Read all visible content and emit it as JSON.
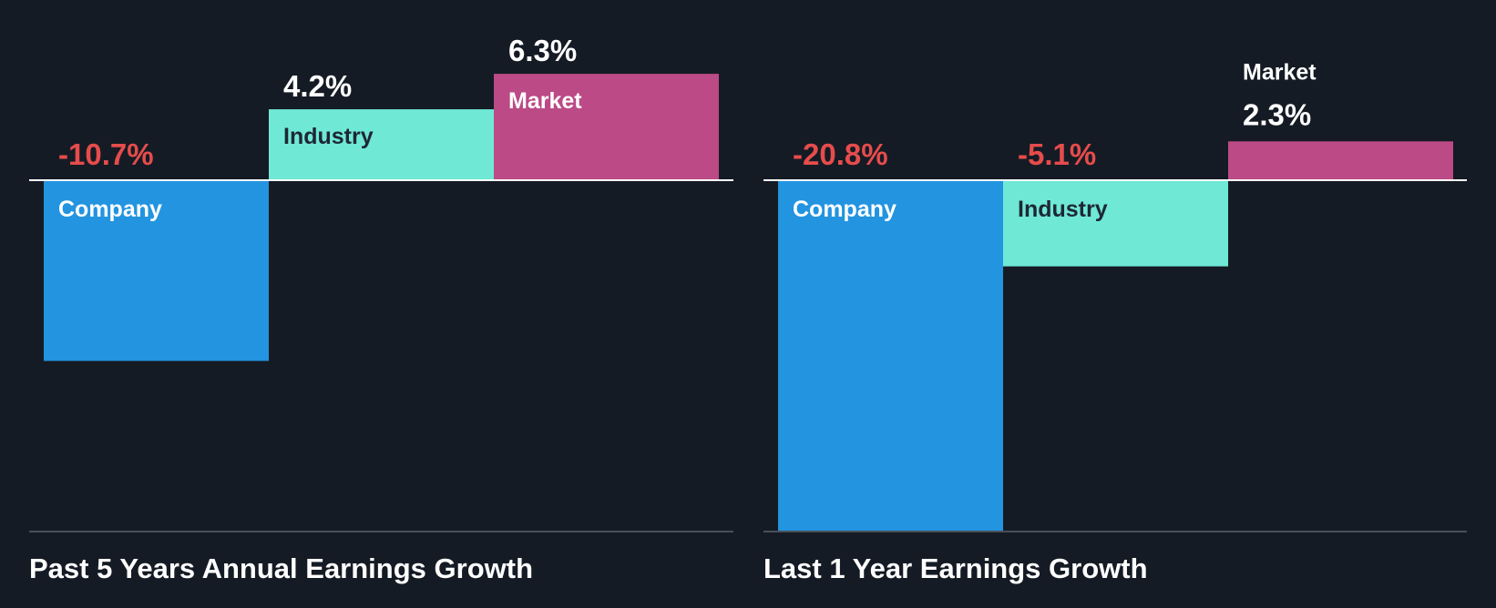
{
  "chart_data": [
    {
      "type": "bar",
      "title": "Past 5 Years Annual Earnings Growth",
      "categories": [
        "Company",
        "Industry",
        "Market"
      ],
      "values": [
        -10.7,
        4.2,
        6.3
      ],
      "value_labels": [
        "-10.7%",
        "4.2%",
        "6.3%"
      ],
      "unit": "%",
      "ylim": [
        -20.8,
        6.3
      ],
      "grid": false,
      "legend": "none",
      "bar_colors": [
        "#2394e0",
        "#6fe8d6",
        "#bb4a86"
      ],
      "label_colors": {
        "positive": "#ffffff",
        "negative": "#e64c4c"
      },
      "category_text_colors": [
        "#ffffff",
        "#1e2733",
        "#ffffff"
      ]
    },
    {
      "type": "bar",
      "title": "Last 1 Year Earnings Growth",
      "categories": [
        "Company",
        "Industry",
        "Market"
      ],
      "values": [
        -20.8,
        -5.1,
        2.3
      ],
      "value_labels": [
        "-20.8%",
        "-5.1%",
        "2.3%"
      ],
      "unit": "%",
      "ylim": [
        -20.8,
        6.3
      ],
      "grid": false,
      "legend": "none",
      "bar_colors": [
        "#2394e0",
        "#6fe8d6",
        "#bb4a86"
      ],
      "label_colors": {
        "positive": "#ffffff",
        "negative": "#e64c4c"
      },
      "category_text_colors": [
        "#ffffff",
        "#1e2733",
        "#ffffff"
      ]
    }
  ],
  "colors": {
    "background": "#151b24",
    "zero_line": "#ffffff",
    "baseline": "#4a5058"
  }
}
